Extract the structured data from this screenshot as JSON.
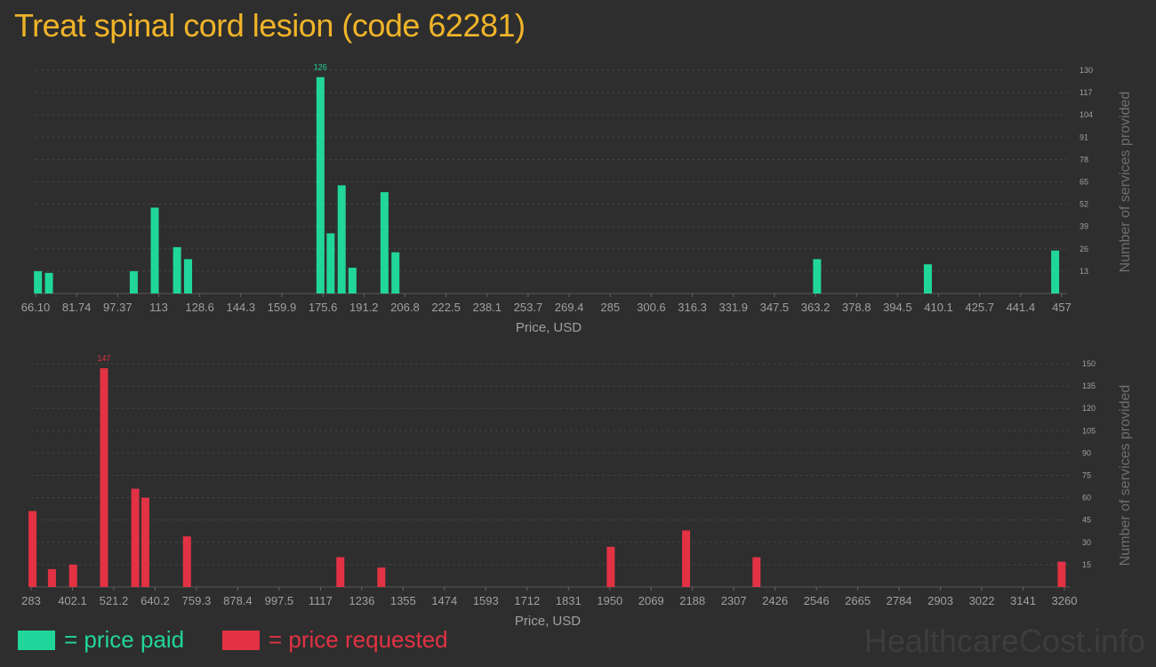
{
  "title": "Treat spinal cord lesion (code 62281)",
  "colors": {
    "paid": "#21d69a",
    "requested": "#e23244",
    "grid": "#444444",
    "axisText": "#a0a0a0"
  },
  "legend": {
    "paid_label": "= price paid",
    "requested_label": "= price requested"
  },
  "watermark": "HealthcareCost.info",
  "chart_data": [
    {
      "type": "bar",
      "name": "price paid",
      "xlabel": "Price, USD",
      "ylabel": "Number of services provided",
      "x_tick_labels": [
        "66.10",
        "81.74",
        "97.37",
        "113",
        "128.6",
        "144.3",
        "159.9",
        "175.6",
        "191.2",
        "206.8",
        "222.5",
        "238.1",
        "253.7",
        "269.4",
        "285",
        "300.6",
        "316.3",
        "331.9",
        "347.5",
        "363.2",
        "378.8",
        "394.5",
        "410.1",
        "425.7",
        "441.4",
        "457"
      ],
      "xlim": [
        66.1,
        457
      ],
      "y_ticks": [
        13,
        26,
        39,
        52,
        65,
        78,
        91,
        104,
        117,
        130
      ],
      "ylim": [
        0,
        130
      ],
      "bars": [
        {
          "x": 67.0,
          "value": 13
        },
        {
          "x": 71.2,
          "value": 12
        },
        {
          "x": 103.5,
          "value": 13
        },
        {
          "x": 111.5,
          "value": 50
        },
        {
          "x": 120.0,
          "value": 27
        },
        {
          "x": 124.2,
          "value": 20
        },
        {
          "x": 174.6,
          "value": 126,
          "label": "126"
        },
        {
          "x": 178.5,
          "value": 35
        },
        {
          "x": 182.7,
          "value": 63
        },
        {
          "x": 186.8,
          "value": 15
        },
        {
          "x": 199.0,
          "value": 59
        },
        {
          "x": 203.2,
          "value": 24
        },
        {
          "x": 363.8,
          "value": 20
        },
        {
          "x": 406.0,
          "value": 17
        },
        {
          "x": 454.5,
          "value": 25
        }
      ]
    },
    {
      "type": "bar",
      "name": "price requested",
      "xlabel": "Price, USD",
      "ylabel": "Number of services provided",
      "x_tick_labels": [
        "283",
        "402.1",
        "521.2",
        "640.2",
        "759.3",
        "878.4",
        "997.5",
        "1117",
        "1236",
        "1355",
        "1474",
        "1593",
        "1712",
        "1831",
        "1950",
        "2069",
        "2188",
        "2307",
        "2426",
        "2546",
        "2665",
        "2784",
        "2903",
        "3022",
        "3141",
        "3260"
      ],
      "xlim": [
        283,
        3260
      ],
      "y_ticks": [
        15,
        30,
        45,
        60,
        75,
        90,
        105,
        120,
        135,
        150
      ],
      "ylim": [
        0,
        150
      ],
      "bars": [
        {
          "x": 287,
          "value": 51
        },
        {
          "x": 343,
          "value": 12
        },
        {
          "x": 404,
          "value": 15
        },
        {
          "x": 493,
          "value": 147,
          "label": "147"
        },
        {
          "x": 583,
          "value": 66
        },
        {
          "x": 612,
          "value": 60
        },
        {
          "x": 732,
          "value": 34
        },
        {
          "x": 1174,
          "value": 20
        },
        {
          "x": 1292,
          "value": 13
        },
        {
          "x": 1953,
          "value": 27
        },
        {
          "x": 2170,
          "value": 38
        },
        {
          "x": 2373,
          "value": 20
        },
        {
          "x": 3252,
          "value": 17
        }
      ]
    }
  ]
}
